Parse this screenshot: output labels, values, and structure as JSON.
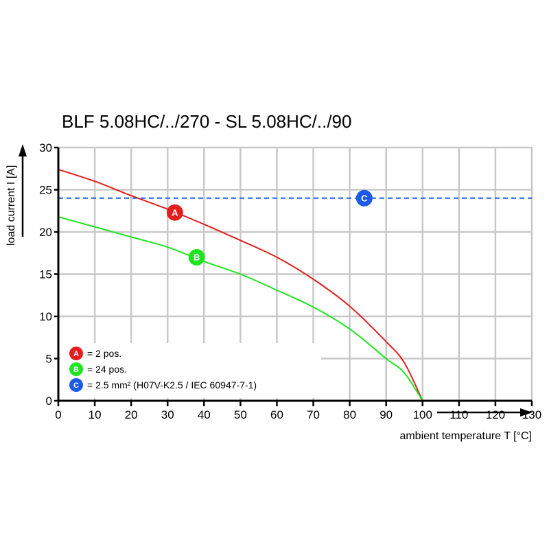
{
  "chart_data": {
    "type": "line",
    "title": "BLF 5.08HC/../270 - SL 5.08HC/../90",
    "xlabel": "ambient temperature T [°C]",
    "ylabel": "load current I [A]",
    "xlim": [
      0,
      130
    ],
    "ylim": [
      0,
      30
    ],
    "xticks": [
      "0",
      "10",
      "20",
      "30",
      "40",
      "50",
      "60",
      "70",
      "80",
      "90",
      "100",
      "110",
      "120",
      "130"
    ],
    "yticks": [
      "0",
      "5",
      "10",
      "15",
      "20",
      "25",
      "30"
    ],
    "grid": true,
    "legend_position": "bottom-left",
    "series": [
      {
        "name": "A",
        "color": "#e41e1e",
        "x": [
          0,
          10,
          20,
          30,
          40,
          50,
          60,
          70,
          80,
          90,
          95,
          100
        ],
        "y": [
          27.4,
          26.0,
          24.3,
          22.7,
          20.9,
          19.0,
          17.0,
          14.4,
          11.2,
          7.0,
          4.5,
          0
        ],
        "marker_x": 32,
        "marker_y": 22.3
      },
      {
        "name": "B",
        "color": "#1ee61e",
        "x": [
          0,
          10,
          20,
          30,
          40,
          50,
          60,
          70,
          80,
          90,
          95,
          100
        ],
        "y": [
          21.8,
          20.6,
          19.4,
          18.2,
          16.5,
          15.0,
          13.1,
          11.1,
          8.5,
          5.0,
          3.3,
          0
        ],
        "marker_x": 38,
        "marker_y": 17.0
      },
      {
        "name": "C",
        "color": "#1e5ae6",
        "dashed": true,
        "x": [
          0,
          130
        ],
        "y": [
          24,
          24
        ],
        "marker_x": 84,
        "marker_y": 24
      }
    ],
    "legend": [
      {
        "key": "A",
        "label": "= 2 pos.",
        "color": "#e41e1e"
      },
      {
        "key": "B",
        "label": "= 24 pos.",
        "color": "#1ee61e"
      },
      {
        "key": "C",
        "label": "= 2.5 mm² (H07V-K2.5 / IEC 60947-7-1)",
        "color": "#1e5ae6"
      }
    ]
  }
}
